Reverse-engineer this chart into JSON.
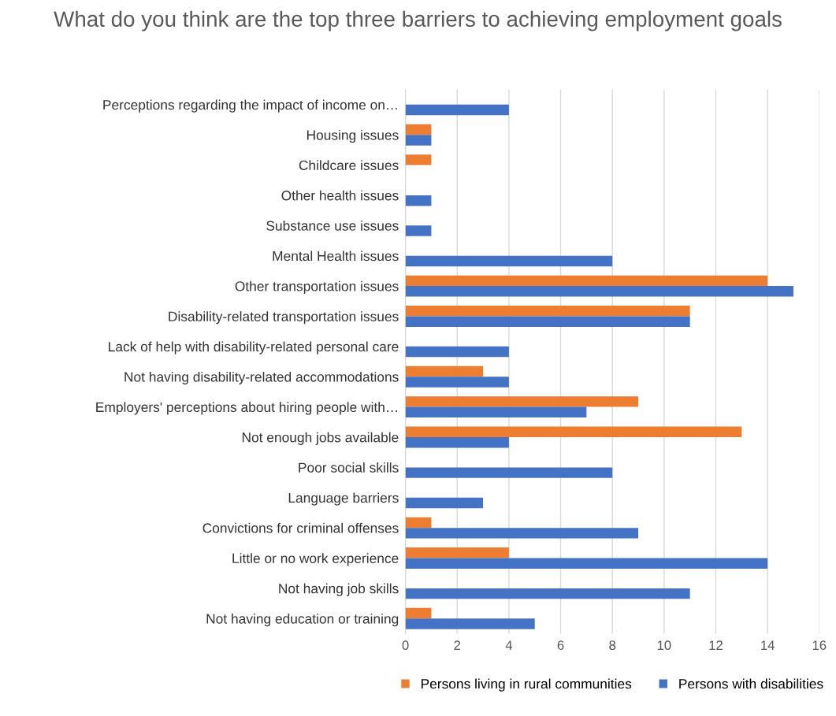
{
  "chart_data": {
    "type": "bar",
    "orientation": "horizontal",
    "title": "What do you think are the top three barriers to achieving employment goals",
    "categories": [
      "Perceptions regarding the impact of income on…",
      "Housing issues",
      "Childcare issues",
      "Other health issues",
      "Substance use issues",
      "Mental Health issues",
      "Other transportation issues",
      "Disability-related transportation issues",
      "Lack of help with disability-related personal care",
      "Not having disability-related accommodations",
      "Employers' perceptions about hiring people with…",
      "Not enough jobs available",
      "Poor social skills",
      "Language barriers",
      "Convictions for criminal offenses",
      "Little or no work experience",
      "Not having job skills",
      "Not having education or training"
    ],
    "series": [
      {
        "name": "Persons living in rural communities",
        "color": "#ed7d31",
        "values": [
          0,
          1,
          1,
          0,
          0,
          0,
          14,
          11,
          0,
          3,
          9,
          13,
          0,
          0,
          1,
          4,
          0,
          1
        ]
      },
      {
        "name": "Persons with disabilities",
        "color": "#4472c4",
        "values": [
          4,
          1,
          0,
          1,
          1,
          8,
          15,
          11,
          4,
          4,
          7,
          4,
          8,
          3,
          9,
          14,
          11,
          5
        ]
      }
    ],
    "xlim": [
      0,
      16
    ],
    "xticks": [
      0,
      2,
      4,
      6,
      8,
      10,
      12,
      14,
      16
    ],
    "grid": "x",
    "legend": "bottom"
  }
}
